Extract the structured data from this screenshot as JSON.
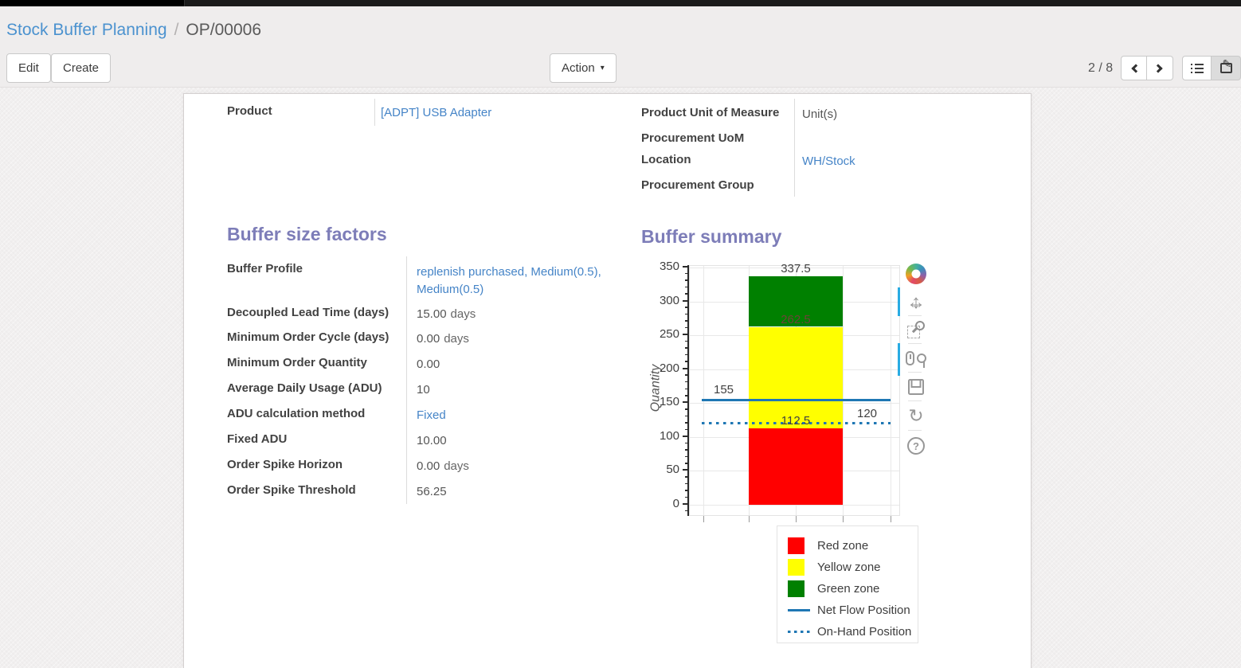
{
  "breadcrumb": {
    "parent": "Stock Buffer Planning",
    "separator": "/",
    "current": "OP/00006"
  },
  "controls": {
    "edit": "Edit",
    "create": "Create",
    "action": "Action",
    "pager": "2 / 8"
  },
  "icons": {
    "action_caret": "▾",
    "pencil": "✎",
    "reset": "↻",
    "help": "?",
    "pan_horizontal": "↔",
    "pan_vertical": "↕"
  },
  "form": {
    "product": {
      "label": "Product",
      "value": "[ADPT] USB Adapter"
    },
    "right_fields": [
      {
        "label": "Product Unit of Measure",
        "value": "Unit(s)"
      },
      {
        "label": "Procurement UoM",
        "value": ""
      },
      {
        "label": "Location",
        "value": "WH/Stock"
      },
      {
        "label": "Procurement Group",
        "value": ""
      }
    ],
    "buffer_factors": {
      "heading": "Buffer size factors",
      "fields": [
        {
          "label": "Buffer Profile",
          "value": "replenish purchased, Medium(0.5), Medium(0.5)"
        },
        {
          "label": "Decoupled Lead Time (days)",
          "value": "15.00",
          "suffix": "days"
        },
        {
          "label": "Minimum Order Cycle (days)",
          "value": "0.00",
          "suffix": "days"
        },
        {
          "label": "Minimum Order Quantity",
          "value": "0.00"
        },
        {
          "label": "Average Daily Usage (ADU)",
          "value": "10"
        },
        {
          "label": "ADU calculation method",
          "value": "Fixed"
        },
        {
          "label": "Fixed ADU",
          "value": "10.00"
        },
        {
          "label": "Order Spike Horizon",
          "value": "0.00",
          "suffix": "days"
        },
        {
          "label": "Order Spike Threshold",
          "value": "56.25"
        }
      ]
    },
    "buffer_summary_heading": "Buffer summary"
  },
  "chart_data": {
    "type": "bar",
    "title": "Buffer summary",
    "ylabel": "Quantity",
    "xlabel": "",
    "ylim": [
      0,
      350
    ],
    "yticks": [
      0,
      50,
      100,
      150,
      200,
      250,
      300,
      350
    ],
    "grid": true,
    "legend_position": "below-right",
    "zones": [
      {
        "name": "Red zone",
        "from": 0,
        "to": 112.5,
        "color": "#ff0000",
        "label": "112.5",
        "label_color": "#3f3f3f"
      },
      {
        "name": "Yellow zone",
        "from": 112.5,
        "to": 262.5,
        "color": "#ffff00",
        "label": "262.5",
        "label_color": "#6e4238"
      },
      {
        "name": "Green zone",
        "from": 262.5,
        "to": 337.5,
        "color": "#008000",
        "label": "337.5",
        "label_color": "#3f3f3f"
      }
    ],
    "lines": [
      {
        "name": "Net Flow Position",
        "value": 155,
        "label": "155",
        "style": "solid",
        "color": "#1f77b4",
        "label_side": "left"
      },
      {
        "name": "On-Hand Position",
        "value": 120,
        "label": "120",
        "style": "dotted",
        "color": "#1f77b4",
        "label_side": "right"
      }
    ],
    "legend": [
      {
        "label": "Red zone",
        "swatch": "square",
        "color": "#ff0000"
      },
      {
        "label": "Yellow zone",
        "swatch": "square",
        "color": "#ffff00"
      },
      {
        "label": "Green zone",
        "swatch": "square",
        "color": "#008000"
      },
      {
        "label": "Net Flow Position",
        "swatch": "line",
        "color": "#1f77b4"
      },
      {
        "label": "On-Hand Position",
        "swatch": "dotted-line",
        "color": "#1f77b4"
      }
    ]
  }
}
